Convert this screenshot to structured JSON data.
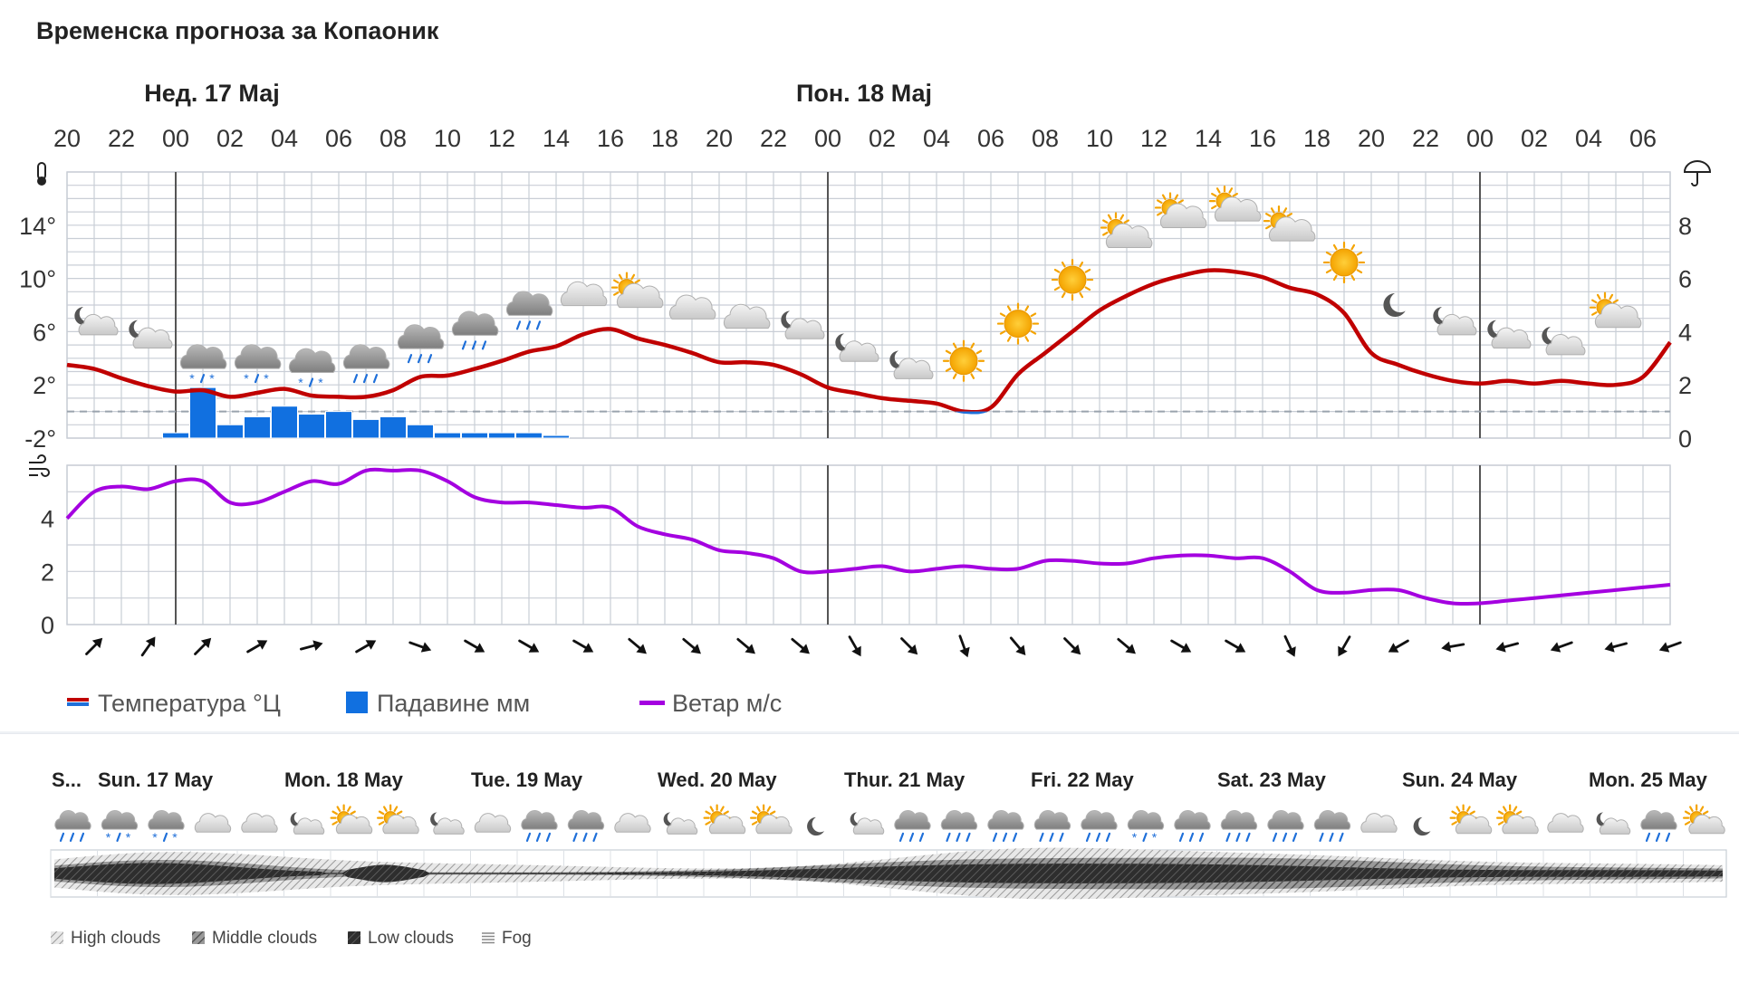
{
  "title": "Временска прогноза за Копаоник",
  "colors": {
    "temp_line": "#c00000",
    "temp_cold": "#1e6fd9",
    "precip": "#1170e0",
    "wind_line": "#a400e0",
    "grid": "#c9ced6",
    "grid_dark": "#555555",
    "text": "#333333"
  },
  "day_headers": [
    {
      "label": "Нед. 17 Мај",
      "hour_index": 2
    },
    {
      "label": "Пон. 18 Мај",
      "hour_index": 14
    }
  ],
  "left_axis_icon": "thermometer-icon",
  "right_axis_icon": "umbrella-icon",
  "wind_axis_icon": "wind-icon",
  "chart_data": [
    {
      "type": "line",
      "hours": [
        "20",
        "22",
        "00",
        "02",
        "04",
        "06",
        "08",
        "10",
        "12",
        "14",
        "16",
        "18",
        "20",
        "22",
        "00",
        "02",
        "04",
        "06",
        "08",
        "10",
        "12",
        "14",
        "16",
        "18",
        "20",
        "22",
        "00",
        "02",
        "04",
        "06"
      ],
      "day_boundaries": [
        2,
        14,
        26
      ],
      "temperature": {
        "name": "Температура °Ц",
        "ylim": [
          -2,
          18
        ],
        "ticks": [
          14,
          10,
          6,
          2,
          -2
        ],
        "x": [
          0,
          0.5,
          1,
          1.5,
          2,
          2.5,
          3,
          3.5,
          4,
          4.5,
          5,
          5.5,
          6,
          6.5,
          7,
          7.5,
          8,
          8.5,
          9,
          9.5,
          10,
          10.5,
          11,
          11.5,
          12,
          12.5,
          13,
          13.5,
          14,
          14.5,
          15,
          15.5,
          16,
          16.5,
          17,
          17.5,
          18,
          18.5,
          19,
          19.5,
          20,
          20.5,
          21,
          21.5,
          22,
          22.5,
          23,
          23.5,
          24,
          24.5,
          25,
          25.5,
          26,
          26.5,
          27,
          27.5,
          28,
          28.5,
          29,
          29.5
        ],
        "values": [
          3.5,
          3.2,
          2.5,
          1.9,
          1.5,
          1.6,
          1.1,
          1.4,
          1.7,
          1.2,
          1.1,
          1.1,
          1.6,
          2.6,
          2.7,
          3.2,
          3.8,
          4.5,
          4.9,
          5.8,
          6.2,
          5.5,
          5.0,
          4.4,
          3.7,
          3.7,
          3.5,
          2.8,
          1.8,
          1.4,
          1.0,
          0.8,
          0.6,
          0.0,
          0.3,
          2.8,
          4.4,
          6.0,
          7.6,
          8.7,
          9.6,
          10.2,
          10.6,
          10.5,
          10.1,
          9.3,
          8.8,
          7.4,
          4.4,
          3.5,
          2.8,
          2.3,
          2.1,
          2.3,
          2.1,
          2.3,
          2.1,
          2.0,
          2.6,
          5.2
        ]
      },
      "precipitation": {
        "name": "Падавине мм",
        "ylim": [
          0,
          10
        ],
        "ticks": [
          8,
          6,
          4,
          2,
          0
        ],
        "x": [
          2,
          2.5,
          3,
          3.5,
          4,
          4.5,
          5,
          5.5,
          6,
          6.5,
          7,
          7.5,
          8,
          8.5,
          9,
          9.5
        ],
        "values": [
          0.2,
          1.9,
          0.5,
          0.8,
          1.2,
          0.9,
          1.0,
          0.7,
          0.8,
          0.5,
          0.2,
          0.2,
          0.2,
          0.2,
          0.1,
          0.0
        ]
      },
      "wind": {
        "name": "Ветар м/с",
        "ylim": [
          0,
          6
        ],
        "ticks": [
          4,
          2,
          0
        ],
        "x": [
          0,
          0.5,
          1,
          1.5,
          2,
          2.5,
          3,
          3.5,
          4,
          4.5,
          5,
          5.5,
          6,
          6.5,
          7,
          7.5,
          8,
          8.5,
          9,
          9.5,
          10,
          10.5,
          11,
          11.5,
          12,
          12.5,
          13,
          13.5,
          14,
          14.5,
          15,
          15.5,
          16,
          16.5,
          17,
          17.5,
          18,
          18.5,
          19,
          19.5,
          20,
          20.5,
          21,
          21.5,
          22,
          22.5,
          23,
          23.5,
          24,
          24.5,
          25,
          25.5,
          26,
          26.5,
          27,
          27.5,
          28,
          28.5,
          29,
          29.5
        ],
        "values": [
          4.0,
          5.0,
          5.2,
          5.1,
          5.4,
          5.4,
          4.6,
          4.6,
          5.0,
          5.4,
          5.3,
          5.8,
          5.8,
          5.8,
          5.4,
          4.8,
          4.6,
          4.6,
          4.5,
          4.4,
          4.4,
          3.7,
          3.4,
          3.2,
          2.8,
          2.7,
          2.5,
          2.0,
          2.0,
          2.1,
          2.2,
          2.0,
          2.1,
          2.2,
          2.1,
          2.1,
          2.4,
          2.4,
          2.3,
          2.3,
          2.5,
          2.6,
          2.6,
          2.5,
          2.5,
          2.0,
          1.3,
          1.2,
          1.3,
          1.3,
          1.0,
          0.8,
          0.8,
          0.9,
          1.0,
          1.1,
          1.2,
          1.3,
          1.4,
          1.5
        ]
      },
      "wind_direction_deg": [
        225,
        215,
        225,
        240,
        255,
        240,
        290,
        300,
        300,
        300,
        310,
        310,
        310,
        310,
        330,
        315,
        340,
        320,
        315,
        310,
        300,
        300,
        335,
        30,
        60,
        80,
        75,
        70,
        75,
        70
      ],
      "legend_placement": "bottom"
    }
  ],
  "weather_icons": [
    {
      "x": 0.5,
      "temp": 6.5,
      "icon": "cloudy-night-icon"
    },
    {
      "x": 1.5,
      "temp": 5.5,
      "icon": "cloudy-night-icon"
    },
    {
      "x": 2.5,
      "temp": 3.5,
      "icon": "cloud-snow-icon"
    },
    {
      "x": 3.5,
      "temp": 3.5,
      "icon": "cloud-snow-icon"
    },
    {
      "x": 4.5,
      "temp": 3.2,
      "icon": "cloud-snow-icon"
    },
    {
      "x": 5.5,
      "temp": 3.5,
      "icon": "cloud-rain-icon"
    },
    {
      "x": 6.5,
      "temp": 5.0,
      "icon": "cloud-rain-icon"
    },
    {
      "x": 7.5,
      "temp": 6.0,
      "icon": "cloud-rain-icon"
    },
    {
      "x": 8.5,
      "temp": 7.5,
      "icon": "cloud-rain-icon"
    },
    {
      "x": 9.5,
      "temp": 8.5,
      "icon": "cloudy-icon"
    },
    {
      "x": 10.5,
      "temp": 8.5,
      "icon": "partly-sunny-icon"
    },
    {
      "x": 11.5,
      "temp": 7.5,
      "icon": "cloudy-icon"
    },
    {
      "x": 12.5,
      "temp": 6.8,
      "icon": "cloudy-icon"
    },
    {
      "x": 13.5,
      "temp": 6.2,
      "icon": "cloudy-night-icon"
    },
    {
      "x": 14.5,
      "temp": 4.5,
      "icon": "cloudy-night-icon"
    },
    {
      "x": 15.5,
      "temp": 3.2,
      "icon": "cloudy-night-icon"
    },
    {
      "x": 16.5,
      "temp": 3.8,
      "icon": "sun-icon"
    },
    {
      "x": 17.5,
      "temp": 6.6,
      "icon": "sun-icon"
    },
    {
      "x": 18.5,
      "temp": 9.9,
      "icon": "sun-icon"
    },
    {
      "x": 19.5,
      "temp": 13.0,
      "icon": "partly-sunny-icon"
    },
    {
      "x": 20.5,
      "temp": 14.5,
      "icon": "partly-sunny-icon"
    },
    {
      "x": 21.5,
      "temp": 15.0,
      "icon": "partly-sunny-icon"
    },
    {
      "x": 22.5,
      "temp": 13.5,
      "icon": "partly-sunny-icon"
    },
    {
      "x": 23.5,
      "temp": 11.2,
      "icon": "sun-icon"
    },
    {
      "x": 24.5,
      "temp": 8.0,
      "icon": "moon-icon"
    },
    {
      "x": 25.5,
      "temp": 6.5,
      "icon": "cloudy-night-icon"
    },
    {
      "x": 26.5,
      "temp": 5.5,
      "icon": "cloudy-night-icon"
    },
    {
      "x": 27.5,
      "temp": 5.0,
      "icon": "cloudy-night-icon"
    },
    {
      "x": 28.5,
      "temp": 7.0,
      "icon": "partly-sunny-icon"
    }
  ],
  "legend": [
    {
      "label": "Температура °Ц",
      "type": "line",
      "color": "#c00000"
    },
    {
      "label": "Падавине мм",
      "type": "box",
      "color": "#1170e0"
    },
    {
      "label": "Ветар м/с",
      "type": "line",
      "color": "#a400e0"
    }
  ],
  "meteogram": {
    "days": [
      {
        "label": "S...",
        "x": 57
      },
      {
        "label": "Sun. 17 May",
        "x": 108
      },
      {
        "label": "Mon. 18 May",
        "x": 314
      },
      {
        "label": "Tue. 19 May",
        "x": 520
      },
      {
        "label": "Wed. 20 May",
        "x": 726
      },
      {
        "label": "Thur. 21 May",
        "x": 932
      },
      {
        "label": "Fri. 22 May",
        "x": 1138
      },
      {
        "label": "Sat. 23 May",
        "x": 1344
      },
      {
        "label": "Sun. 24 May",
        "x": 1548
      },
      {
        "label": "Mon. 25 May",
        "x": 1754
      }
    ],
    "icons": [
      "cloud-rain-icon",
      "cloud-snow-icon",
      "cloud-snow-icon",
      "cloudy-icon",
      "cloudy-icon",
      "cloudy-night-icon",
      "partly-sunny-icon",
      "partly-sunny-icon",
      "cloudy-night-icon",
      "cloudy-icon",
      "cloud-rain-icon",
      "cloud-rain-icon",
      "cloudy-icon",
      "cloudy-night-icon",
      "partly-sunny-icon",
      "partly-sunny-icon",
      "moon-icon",
      "cloudy-night-icon",
      "cloud-rain-icon",
      "cloud-rain-icon",
      "cloud-rain-icon",
      "cloud-rain-icon",
      "cloud-rain-icon",
      "cloud-snow-icon",
      "cloud-rain-icon",
      "cloud-rain-icon",
      "cloud-rain-icon",
      "cloud-rain-icon",
      "cloudy-icon",
      "moon-icon",
      "partly-sunny-icon",
      "partly-sunny-icon",
      "cloudy-icon",
      "cloudy-night-icon",
      "cloud-rain-icon",
      "partly-sunny-icon"
    ],
    "legend": [
      {
        "label": "High clouds",
        "icon": "high-clouds-icon"
      },
      {
        "label": "Middle clouds",
        "icon": "middle-clouds-icon"
      },
      {
        "label": "Low clouds",
        "icon": "low-clouds-icon"
      },
      {
        "label": "Fog",
        "icon": "fog-icon"
      }
    ]
  }
}
